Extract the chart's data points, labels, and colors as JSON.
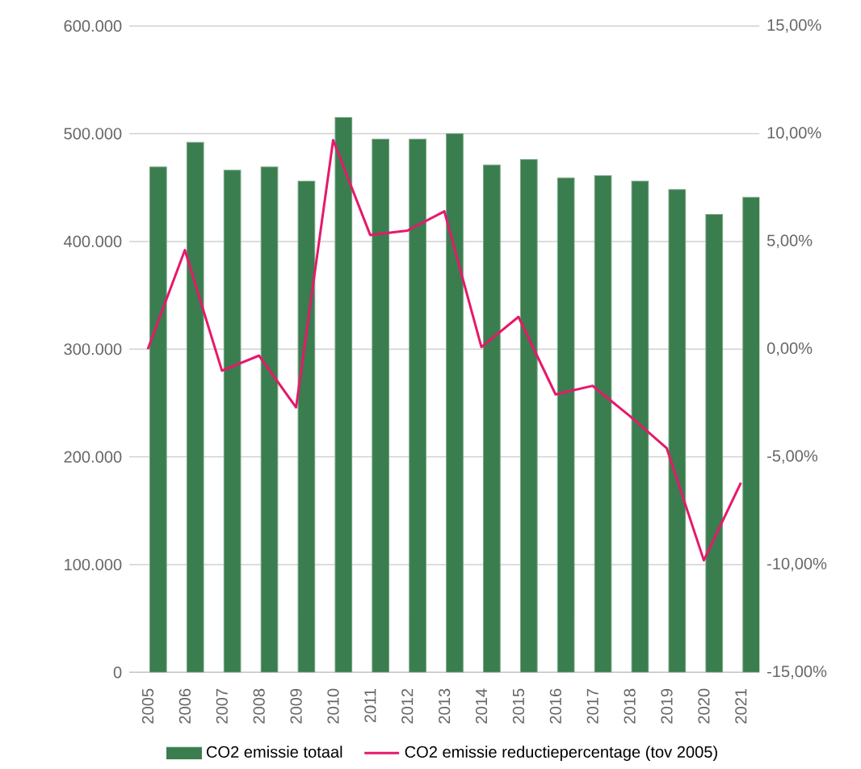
{
  "chart_data": {
    "type": "bar",
    "categories": [
      "2005",
      "2006",
      "2007",
      "2008",
      "2009",
      "2010",
      "2011",
      "2012",
      "2013",
      "2014",
      "2015",
      "2016",
      "2017",
      "2018",
      "2019",
      "2020",
      "2021"
    ],
    "series": [
      {
        "name": "CO2 emissie totaal",
        "color": "#3a7d4e",
        "values": [
          469000,
          492000,
          466000,
          469000,
          456000,
          515000,
          495000,
          495000,
          500000,
          471000,
          476000,
          459000,
          461000,
          456000,
          448000,
          425000,
          441000
        ]
      },
      {
        "name": "CO2 emissie reductiepercentage (tov 2005)",
        "type": "line",
        "axis": "y2",
        "color": "#e6196a",
        "values": [
          0.0,
          4.6,
          -1.0,
          -0.3,
          -2.7,
          9.7,
          5.3,
          5.5,
          6.4,
          0.1,
          1.5,
          -2.1,
          -1.7,
          -3.1,
          -4.6,
          -9.8,
          -6.2
        ]
      }
    ],
    "ylim": [
      0,
      600000
    ],
    "yticks": [
      {
        "value": 0,
        "label": "0"
      },
      {
        "value": 100000,
        "label": "100.000"
      },
      {
        "value": 200000,
        "label": "200.000"
      },
      {
        "value": 300000,
        "label": "300.000"
      },
      {
        "value": 400000,
        "label": "400.000"
      },
      {
        "value": 500000,
        "label": "500.000"
      },
      {
        "value": 600000,
        "label": "600.000"
      }
    ],
    "y2lim": [
      -15,
      15
    ],
    "y2ticks": [
      {
        "value": -15,
        "label": "-15,00%"
      },
      {
        "value": -10,
        "label": "-10,00%"
      },
      {
        "value": -5,
        "label": "-5,00%"
      },
      {
        "value": 0,
        "label": "0,00%"
      },
      {
        "value": 5,
        "label": "5,00%"
      },
      {
        "value": 10,
        "label": "10,00%"
      },
      {
        "value": 15,
        "label": "15,00%"
      }
    ],
    "grid": "y",
    "legend": "bottom"
  }
}
